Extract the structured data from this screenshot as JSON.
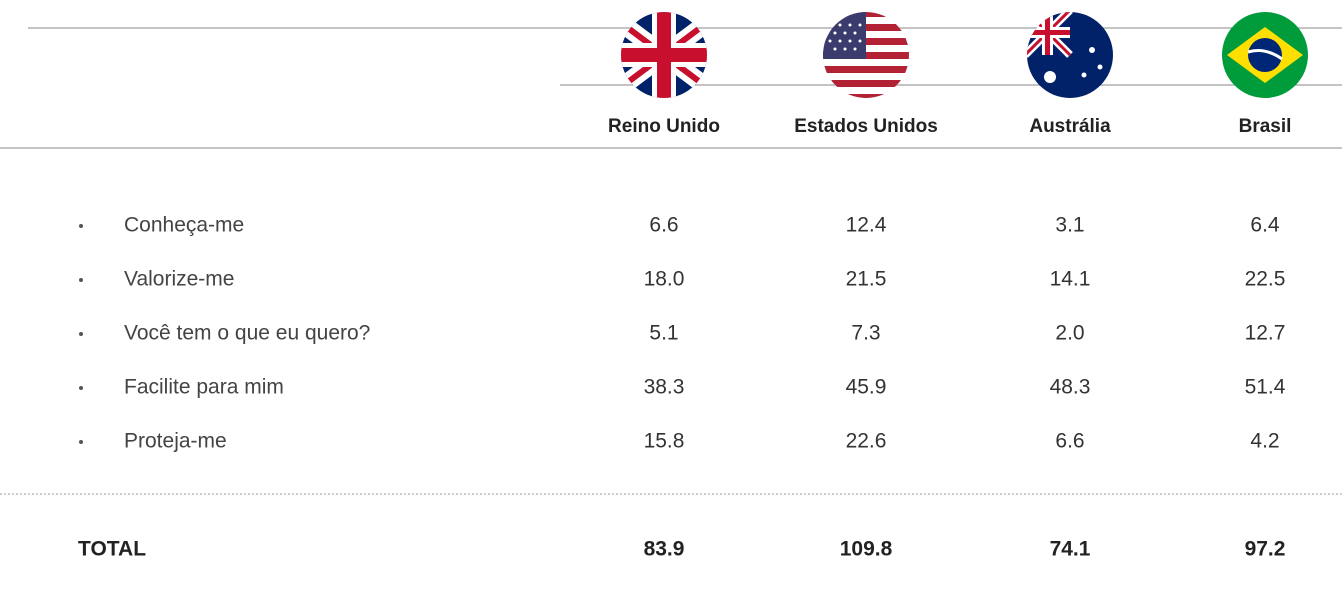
{
  "table": {
    "columns": [
      "Reino Unido",
      "Estados Unidos",
      "Austrália",
      "Brasil"
    ],
    "rows": [
      {
        "label": "Conheça-me",
        "values": [
          "6.6",
          "12.4",
          "3.1",
          "6.4"
        ]
      },
      {
        "label": "Valorize-me",
        "values": [
          "18.0",
          "21.5",
          "14.1",
          "22.5"
        ]
      },
      {
        "label": "Você tem o que eu quero?",
        "values": [
          "5.1",
          "7.3",
          "2.0",
          "12.7"
        ]
      },
      {
        "label": "Facilite para mim",
        "values": [
          "38.3",
          "45.9",
          "48.3",
          "51.4"
        ]
      },
      {
        "label": "Proteja-me",
        "values": [
          "15.8",
          "22.6",
          "6.6",
          "4.2"
        ]
      }
    ],
    "total": {
      "label": "TOTAL",
      "values": [
        "83.9",
        "109.8",
        "74.1",
        "97.2"
      ]
    }
  }
}
